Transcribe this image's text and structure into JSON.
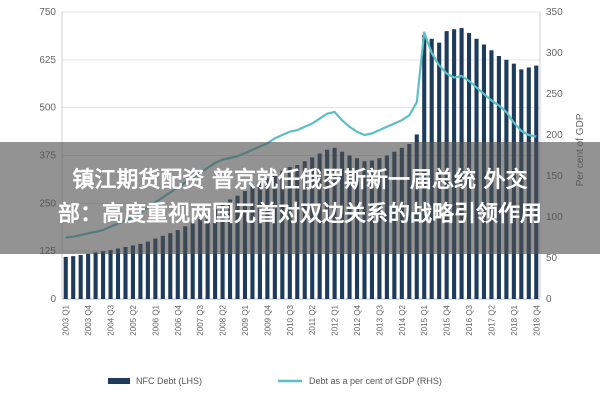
{
  "overlay": {
    "line1": "镇江期货配资 普京就任俄罗斯新一届总统 外交",
    "line2": "部：高度重视两国元首对双边关系的战略引领作用"
  },
  "chart_data": {
    "type": "bar",
    "title": "",
    "xlabel": "",
    "ylabel_left": "$ billion",
    "ylabel_right": "Per cent of GDP",
    "ylim_left": [
      0,
      750
    ],
    "ylim_right": [
      0,
      350
    ],
    "yticks_left": [
      "0",
      "125",
      "250",
      "375",
      "500",
      "625",
      "750"
    ],
    "yticks_right": [
      "0",
      "50",
      "100",
      "150",
      "200",
      "250",
      "300",
      "350"
    ],
    "grid": true,
    "legend_position": "bottom",
    "categories": [
      "2003 Q1",
      "2003 Q2",
      "2003 Q3",
      "2003 Q4",
      "2004 Q1",
      "2004 Q2",
      "2004 Q3",
      "2004 Q4",
      "2005 Q1",
      "2005 Q2",
      "2005 Q3",
      "2005 Q4",
      "2006 Q1",
      "2006 Q2",
      "2006 Q3",
      "2006 Q4",
      "2007 Q1",
      "2007 Q2",
      "2007 Q3",
      "2007 Q4",
      "2008 Q1",
      "2008 Q2",
      "2008 Q3",
      "2008 Q4",
      "2009 Q1",
      "2009 Q2",
      "2009 Q3",
      "2009 Q4",
      "2010 Q1",
      "2010 Q2",
      "2010 Q3",
      "2010 Q4",
      "2011 Q1",
      "2011 Q2",
      "2011 Q3",
      "2011 Q4",
      "2012 Q1",
      "2012 Q2",
      "2012 Q3",
      "2012 Q4",
      "2013 Q1",
      "2013 Q2",
      "2013 Q3",
      "2013 Q4",
      "2014 Q1",
      "2014 Q2",
      "2014 Q3",
      "2014 Q4",
      "2015 Q1",
      "2015 Q2",
      "2015 Q3",
      "2015 Q4",
      "2016 Q1",
      "2016 Q2",
      "2016 Q3",
      "2016 Q4",
      "2017 Q1",
      "2017 Q2",
      "2017 Q3",
      "2017 Q4",
      "2018 Q1",
      "2018 Q2",
      "2018 Q3",
      "2018 Q4"
    ],
    "xtick_labels": [
      "2003 Q1",
      "2003 Q4",
      "2004 Q3",
      "2005 Q2",
      "2006 Q1",
      "2006 Q4",
      "2007 Q3",
      "2008 Q2",
      "2009 Q1",
      "2009 Q4",
      "2010 Q3",
      "2011 Q2",
      "2012 Q1",
      "2012 Q4",
      "2013 Q3",
      "2014 Q2",
      "2015 Q1",
      "2015 Q4",
      "2016 Q3",
      "2017 Q2",
      "2018 Q1",
      "2018 Q4"
    ],
    "series": [
      {
        "name": "NFC Debt (LHS)",
        "type": "bar",
        "axis": "left",
        "color": "#1f3b5c",
        "values": [
          110,
          112,
          115,
          118,
          122,
          125,
          128,
          132,
          136,
          140,
          144,
          150,
          158,
          165,
          172,
          180,
          190,
          200,
          210,
          222,
          235,
          248,
          260,
          270,
          282,
          294,
          305,
          315,
          325,
          335,
          345,
          350,
          360,
          370,
          380,
          390,
          395,
          385,
          375,
          368,
          360,
          362,
          368,
          375,
          385,
          395,
          405,
          430,
          690,
          680,
          670,
          700,
          705,
          708,
          695,
          680,
          665,
          650,
          635,
          625,
          615,
          600,
          605,
          610
        ]
      },
      {
        "name": "Debt as a per cent of GDP (RHS)",
        "type": "line",
        "axis": "right",
        "color": "#5bc0c6",
        "values": [
          75,
          76,
          78,
          80,
          82,
          84,
          88,
          92,
          96,
          100,
          105,
          112,
          118,
          124,
          130,
          136,
          142,
          148,
          154,
          160,
          166,
          170,
          172,
          174,
          178,
          182,
          186,
          190,
          196,
          200,
          204,
          206,
          210,
          214,
          220,
          226,
          228,
          218,
          210,
          204,
          200,
          202,
          206,
          210,
          214,
          218,
          224,
          240,
          325,
          300,
          285,
          275,
          270,
          272,
          266,
          258,
          250,
          242,
          236,
          228,
          215,
          205,
          200,
          198
        ]
      }
    ]
  }
}
